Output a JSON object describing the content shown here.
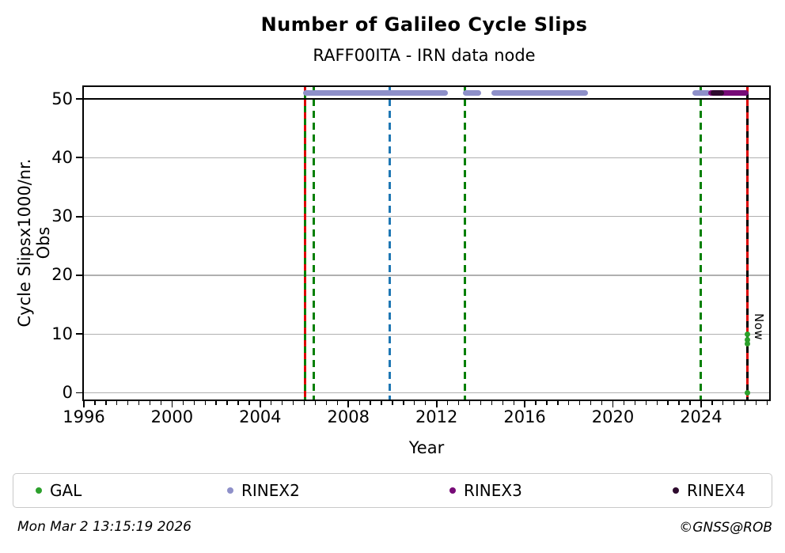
{
  "header": {
    "title": "Number of Galileo Cycle Slips",
    "subtitle": "RAFF00ITA - IRN data node"
  },
  "chart_data": {
    "type": "scatter",
    "title": "Number of Galileo Cycle Slips",
    "subtitle": "RAFF00ITA - IRN data node",
    "xlabel": "Year",
    "ylabel": "Cycle Slipsx1000/nr. Obs",
    "xlim": [
      1996,
      2027.09
    ],
    "ylim": [
      -1.14,
      52.02
    ],
    "xticks": [
      1996,
      2000,
      2004,
      2008,
      2012,
      2016,
      2020,
      2024
    ],
    "xtick_minor_step_years": 0.5,
    "yticks": [
      0,
      10,
      20,
      30,
      40,
      50
    ],
    "grid": true,
    "grid_color": "#b0b0b0",
    "legend_position": "bottom",
    "threshold_line": {
      "y": 50,
      "color": "#000000"
    },
    "series": [
      {
        "name": "GAL",
        "type": "points",
        "color": "#2ca02c",
        "points": [
          [
            2026.12,
            10.0
          ],
          [
            2026.12,
            9.0
          ],
          [
            2026.12,
            8.4
          ],
          [
            2026.12,
            0
          ]
        ]
      },
      {
        "name": "RINEX2",
        "type": "availability-band",
        "color": "#8e90c9",
        "y": 51,
        "segments": [
          [
            2005.94,
            2012.51
          ],
          [
            2013.19,
            2014.02
          ],
          [
            2014.5,
            2018.88
          ],
          [
            2023.6,
            2024.43
          ]
        ]
      },
      {
        "name": "RINEX3",
        "type": "availability-band",
        "color": "#770b77",
        "y": 51,
        "segments": [
          [
            2024.32,
            2026.14
          ]
        ]
      },
      {
        "name": "RINEX4",
        "type": "availability-band",
        "color": "#2e0b2e",
        "y": 51,
        "segments": [
          [
            2024.43,
            2025.05
          ]
        ]
      }
    ],
    "vlines": [
      {
        "x": 2006.03,
        "color": "#007f00",
        "style": "solid",
        "overlay_color": "#dd0000",
        "overlay_style": "dashed"
      },
      {
        "x": 2006.44,
        "color": "#007f00",
        "style": "dashed"
      },
      {
        "x": 2009.87,
        "color": "#1f77b4",
        "style": "dashed"
      },
      {
        "x": 2013.27,
        "color": "#007f00",
        "style": "dashed"
      },
      {
        "x": 2024.0,
        "color": "#007f00",
        "style": "dashed"
      },
      {
        "x": 2026.12,
        "color": "#000000",
        "style": "solid",
        "overlay_color": "#dd0000",
        "overlay_style": "dashed",
        "label": "Now"
      }
    ]
  },
  "legend": {
    "items": [
      {
        "label": "GAL",
        "color": "#2ca02c"
      },
      {
        "label": "RINEX2",
        "color": "#8e90c9"
      },
      {
        "label": "RINEX3",
        "color": "#770b77"
      },
      {
        "label": "RINEX4",
        "color": "#2e0b2e"
      }
    ]
  },
  "footer": {
    "timestamp": "Mon Mar  2 13:15:19 2026",
    "copyright": "©GNSS@ROB"
  }
}
